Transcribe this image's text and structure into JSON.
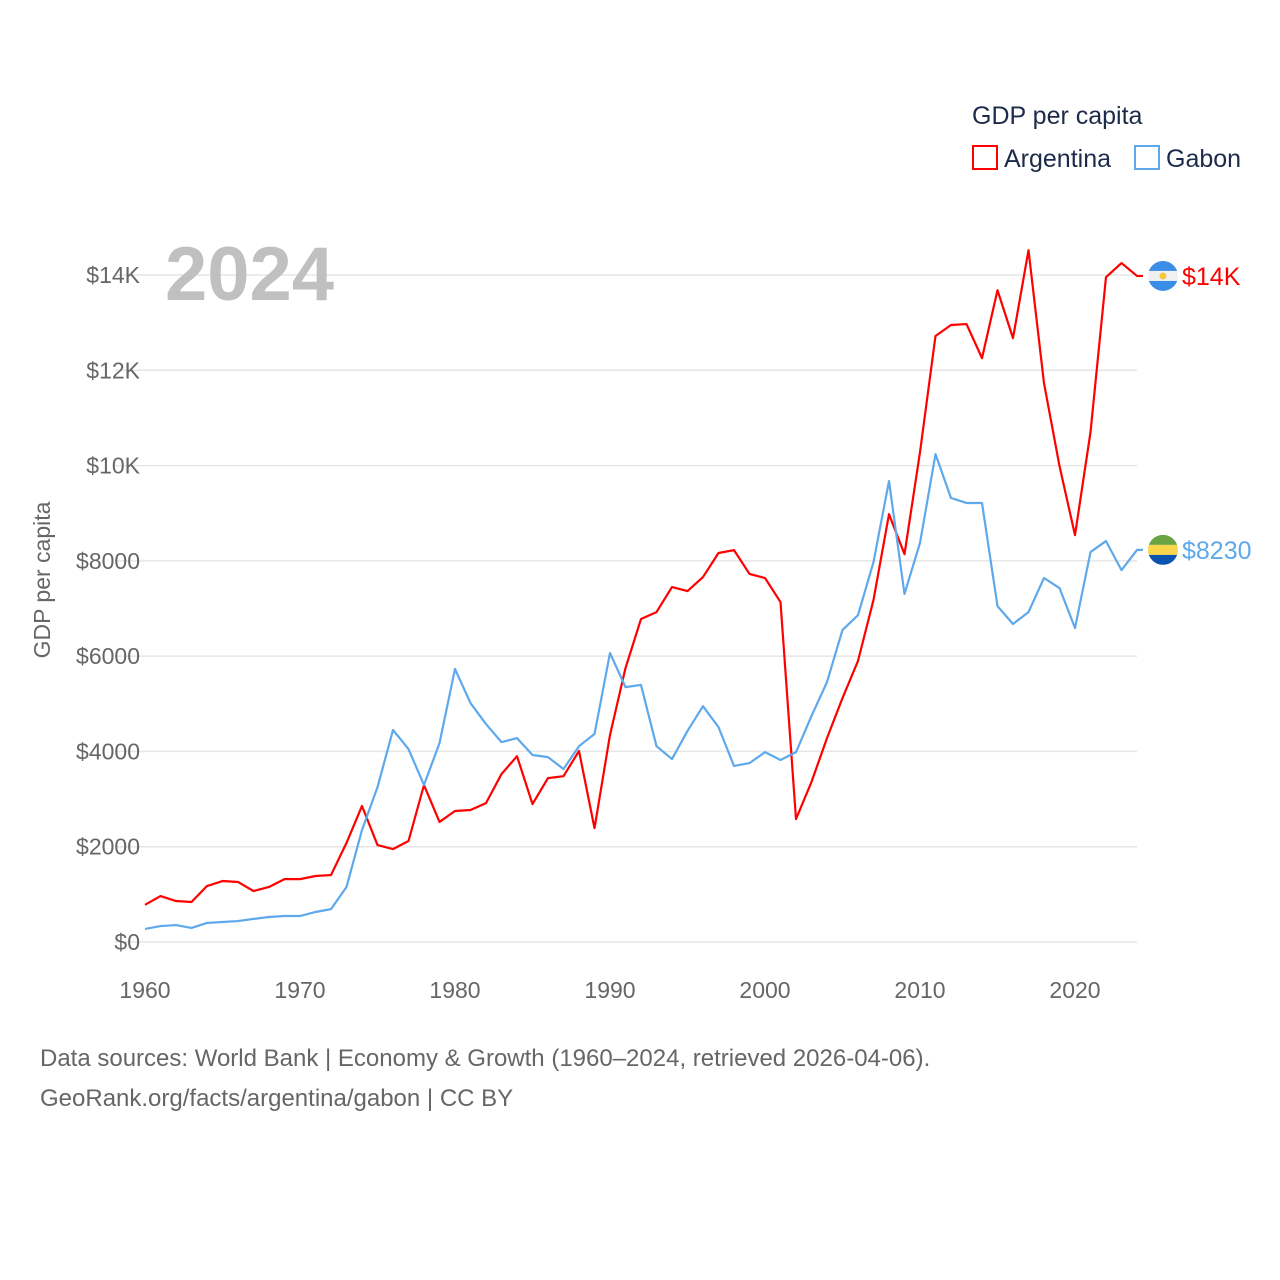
{
  "chart_data": {
    "type": "line",
    "title": "GDP per capita",
    "ylabel": "GDP per capita",
    "xlabel": "",
    "year_label": "2024",
    "xlim": [
      1960,
      2024
    ],
    "ylim": [
      0,
      14000
    ],
    "x_ticks": [
      1960,
      1970,
      1980,
      1990,
      2000,
      2010,
      2020
    ],
    "y_ticks": [
      0,
      2000,
      4000,
      6000,
      8000,
      10000,
      12000,
      14000
    ],
    "y_tick_labels": [
      "$0",
      "$2000",
      "$4000",
      "$6000",
      "$8000",
      "$10K",
      "$12K",
      "$14K"
    ],
    "grid": true,
    "legend_position": "top-right",
    "x": [
      1960,
      1961,
      1962,
      1963,
      1964,
      1965,
      1966,
      1967,
      1968,
      1969,
      1970,
      1971,
      1972,
      1973,
      1974,
      1975,
      1976,
      1977,
      1978,
      1979,
      1980,
      1981,
      1982,
      1983,
      1984,
      1985,
      1986,
      1987,
      1988,
      1989,
      1990,
      1991,
      1992,
      1993,
      1994,
      1995,
      1996,
      1997,
      1998,
      1999,
      2000,
      2001,
      2002,
      2003,
      2004,
      2005,
      2006,
      2007,
      2008,
      2009,
      2010,
      2011,
      2012,
      2013,
      2014,
      2015,
      2016,
      2017,
      2018,
      2019,
      2020,
      2021,
      2022,
      2023,
      2024
    ],
    "series": [
      {
        "name": "Argentina",
        "color": "#ff0000",
        "end_label": "$14K",
        "values": [
          780,
          965,
          860,
          840,
          1175,
          1280,
          1260,
          1070,
          1155,
          1320,
          1320,
          1385,
          1405,
          2080,
          2855,
          2035,
          1950,
          2120,
          3295,
          2520,
          2750,
          2770,
          2915,
          3525,
          3900,
          2895,
          3440,
          3480,
          4010,
          2390,
          4345,
          5750,
          6780,
          6925,
          7450,
          7365,
          7660,
          8165,
          8225,
          7725,
          7640,
          7135,
          2580,
          3360,
          4280,
          5120,
          5900,
          7180,
          8980,
          8140,
          10280,
          12720,
          12950,
          12970,
          12255,
          13680,
          12675,
          14520,
          11730,
          9990,
          8540,
          10700,
          13955,
          14250,
          13980
        ]
      },
      {
        "name": "Gabon",
        "color": "#5ea8ec",
        "end_label": "$8230",
        "values": [
          275,
          335,
          355,
          295,
          400,
          420,
          440,
          485,
          525,
          545,
          545,
          630,
          690,
          1155,
          2350,
          3250,
          4450,
          4050,
          3295,
          4175,
          5730,
          5015,
          4575,
          4195,
          4280,
          3925,
          3880,
          3630,
          4110,
          4365,
          6065,
          5350,
          5395,
          4110,
          3840,
          4430,
          4950,
          4510,
          3695,
          3755,
          3985,
          3820,
          3985,
          4745,
          5455,
          6550,
          6860,
          7975,
          9675,
          7305,
          8375,
          10240,
          9320,
          9215,
          9215,
          7050,
          6675,
          6925,
          7640,
          7430,
          6590,
          8185,
          8415,
          7805,
          8230
        ]
      }
    ]
  },
  "sources": {
    "line1": "Data sources: World Bank | Economy & Growth (1960–2024, retrieved 2026-04-06).",
    "line2": "GeoRank.org/facts/argentina/gabon | CC BY"
  }
}
